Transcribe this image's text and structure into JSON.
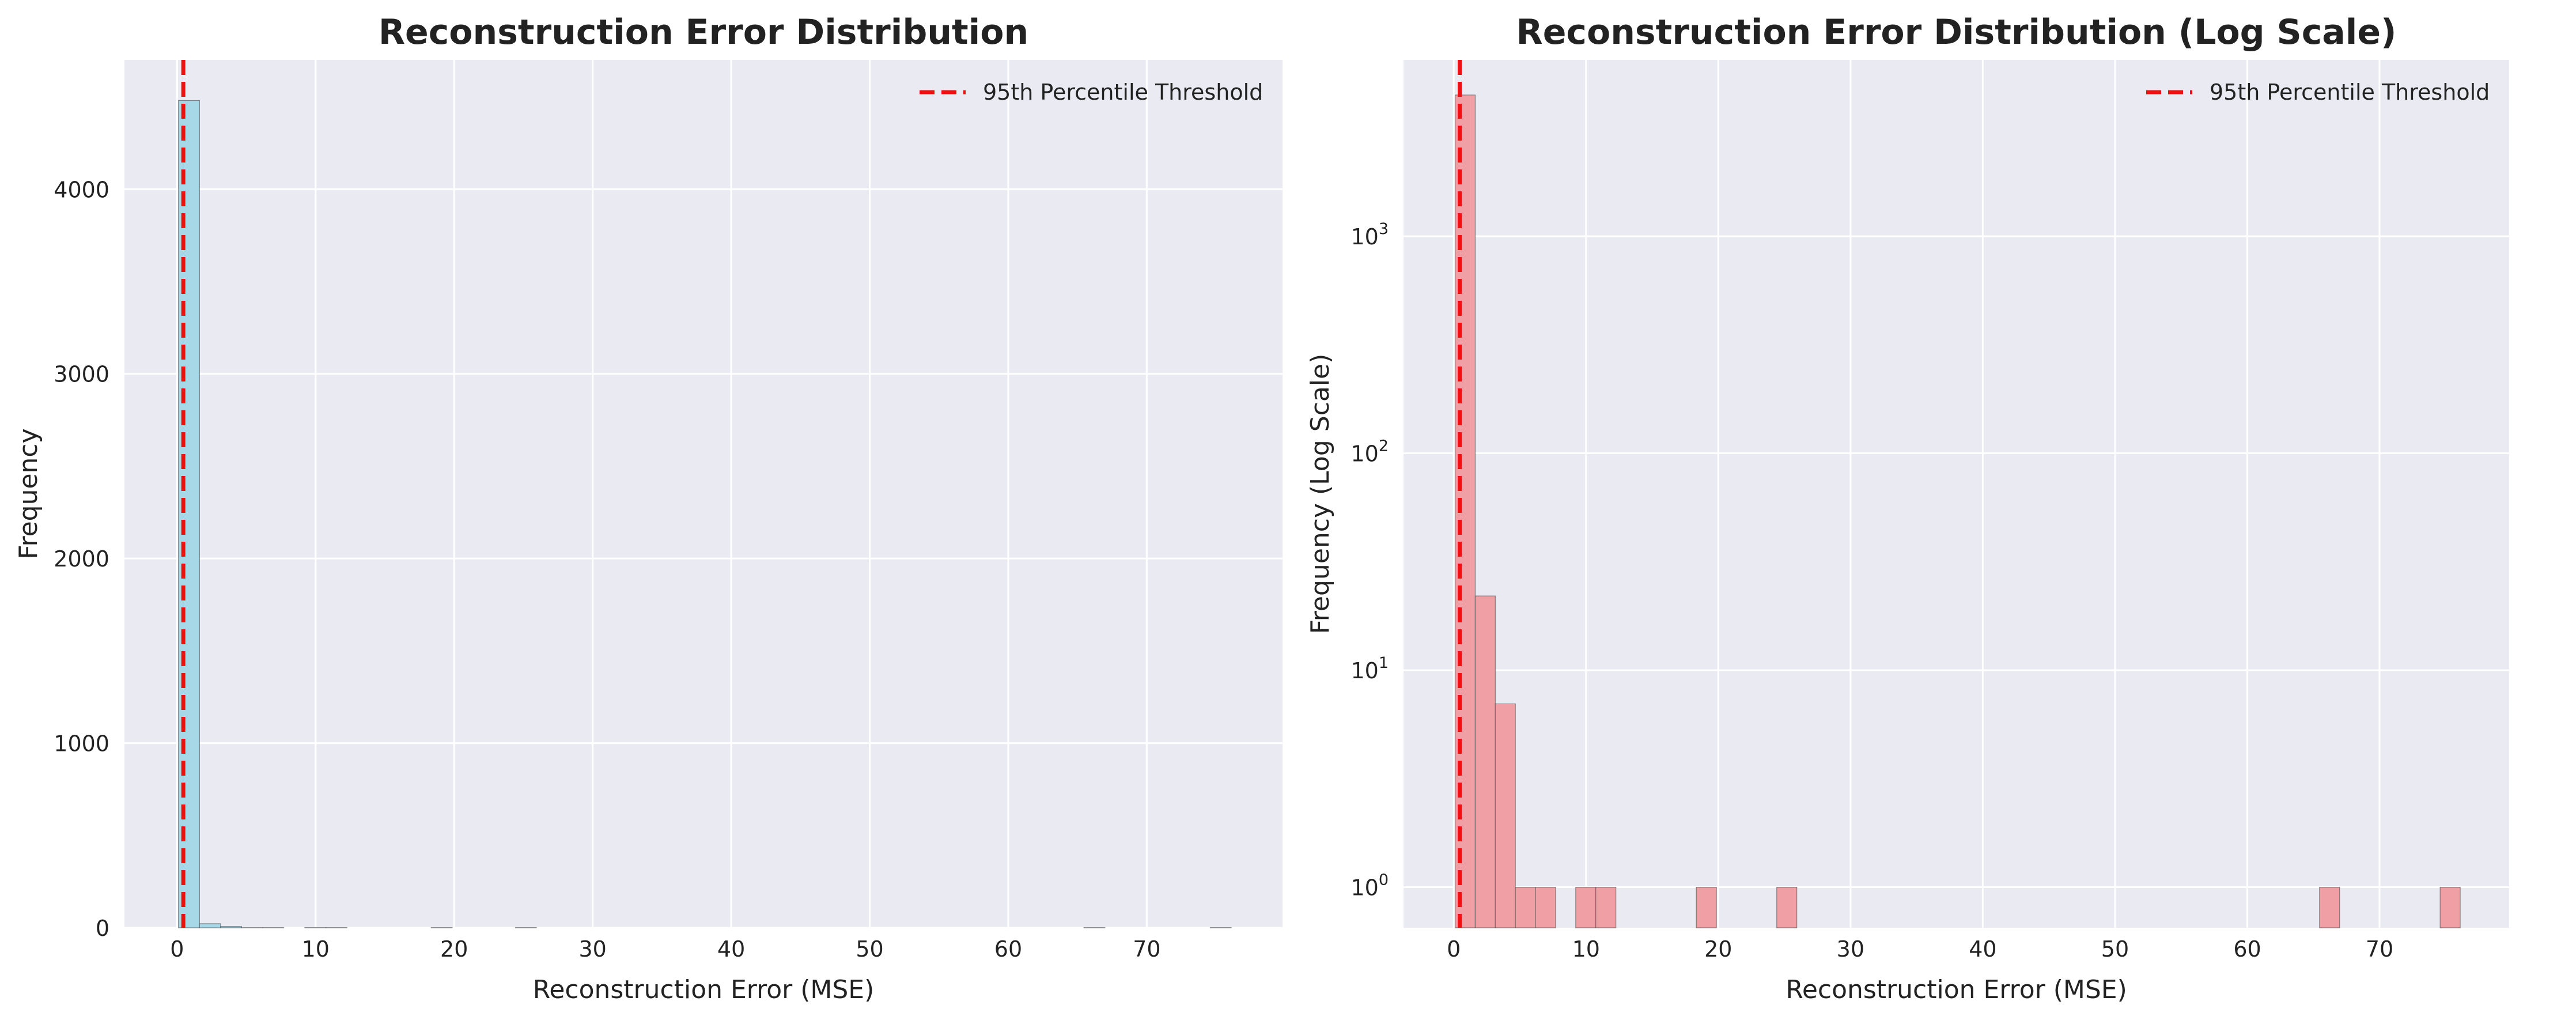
{
  "chart_data": [
    {
      "type": "bar",
      "title": "Reconstruction Error Distribution",
      "xlabel": "Reconstruction Error (MSE)",
      "ylabel": "Frequency",
      "yscale": "linear",
      "xlim": [
        -3.8,
        79.8
      ],
      "ylim": [
        0,
        4700
      ],
      "xticks": [
        0,
        10,
        20,
        30,
        40,
        50,
        60,
        70
      ],
      "yticks": [
        0,
        1000,
        2000,
        3000,
        4000
      ],
      "bins": {
        "start": 0.1,
        "width": 1.52,
        "count": 50
      },
      "counts": [
        4480,
        22,
        7,
        1,
        1,
        0,
        1,
        1,
        0,
        0,
        0,
        0,
        1,
        0,
        0,
        0,
        1,
        0,
        0,
        0,
        0,
        0,
        0,
        0,
        0,
        0,
        0,
        0,
        0,
        0,
        0,
        0,
        0,
        0,
        0,
        0,
        0,
        0,
        0,
        0,
        0,
        0,
        0,
        1,
        0,
        0,
        0,
        0,
        0,
        1
      ],
      "bar_color": "#a6d8e8",
      "threshold": {
        "label": "95th Percentile Threshold",
        "x": 0.45,
        "color": "#ee1111"
      },
      "grid": true,
      "legend": "upper-right"
    },
    {
      "type": "bar",
      "title": "Reconstruction Error Distribution (Log Scale)",
      "xlabel": "Reconstruction Error (MSE)",
      "ylabel": "Frequency (Log Scale)",
      "yscale": "log",
      "xlim": [
        -3.8,
        79.8
      ],
      "ylim": [
        0.65,
        6500
      ],
      "xticks": [
        0,
        10,
        20,
        30,
        40,
        50,
        60,
        70
      ],
      "yticks": [
        1,
        10,
        100,
        1000
      ],
      "ytick_labels": [
        {
          "base": "10",
          "exp": "0"
        },
        {
          "base": "10",
          "exp": "1"
        },
        {
          "base": "10",
          "exp": "2"
        },
        {
          "base": "10",
          "exp": "3"
        }
      ],
      "bins": {
        "start": 0.1,
        "width": 1.52,
        "count": 50
      },
      "counts": [
        4480,
        22,
        7,
        1,
        1,
        0,
        1,
        1,
        0,
        0,
        0,
        0,
        1,
        0,
        0,
        0,
        1,
        0,
        0,
        0,
        0,
        0,
        0,
        0,
        0,
        0,
        0,
        0,
        0,
        0,
        0,
        0,
        0,
        0,
        0,
        0,
        0,
        0,
        0,
        0,
        0,
        0,
        0,
        1,
        0,
        0,
        0,
        0,
        0,
        1
      ],
      "bar_color": "#f0a0a4",
      "threshold": {
        "label": "95th Percentile Threshold",
        "x": 0.45,
        "color": "#ee1111"
      },
      "grid": true,
      "legend": "upper-right"
    }
  ]
}
